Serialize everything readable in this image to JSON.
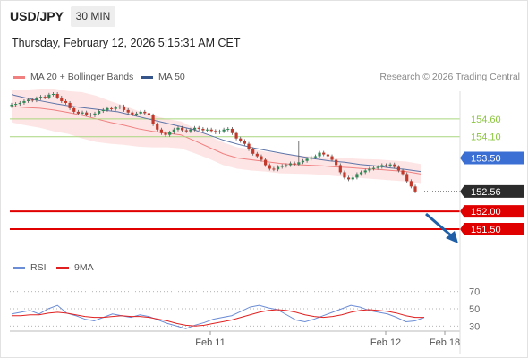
{
  "header": {
    "symbol": "USD/JPY",
    "timeframe": "30 MIN",
    "datetime": "Thursday, February 12, 2026 5:15:31 AM CET"
  },
  "legend": {
    "items": [
      {
        "label": "MA 20 + Bollinger Bands",
        "color": "#f08080"
      },
      {
        "label": "MA 50",
        "color": "#34548a"
      }
    ],
    "credit": "Research © 2026 Trading Central"
  },
  "chart_data": [
    {
      "type": "candlestick",
      "title": "",
      "y_range": [
        151.35,
        155.35
      ],
      "x_tick_labels": [
        "Feb 11",
        "Feb 12",
        "Feb 18"
      ],
      "close_series": [
        155.0,
        155.02,
        155.05,
        155.1,
        155.14,
        155.12,
        155.18,
        155.22,
        155.2,
        155.28,
        155.3,
        155.2,
        155.1,
        155.05,
        154.9,
        154.8,
        154.75,
        154.78,
        154.72,
        154.7,
        154.75,
        154.82,
        154.85,
        154.9,
        154.88,
        154.92,
        154.95,
        154.85,
        154.78,
        154.72,
        154.75,
        154.8,
        154.76,
        154.7,
        154.45,
        154.3,
        154.2,
        154.15,
        154.22,
        154.3,
        154.35,
        154.28,
        154.25,
        154.3,
        154.35,
        154.32,
        154.28,
        154.3,
        154.26,
        154.22,
        154.25,
        154.3,
        154.32,
        154.2,
        154.05,
        153.98,
        153.9,
        153.75,
        153.62,
        153.55,
        153.45,
        153.3,
        153.2,
        153.18,
        153.25,
        153.28,
        153.3,
        153.35,
        153.32,
        153.38,
        153.42,
        153.48,
        153.52,
        153.55,
        153.65,
        153.6,
        153.55,
        153.45,
        153.3,
        153.1,
        152.95,
        152.9,
        152.95,
        153.05,
        153.1,
        153.15,
        153.2,
        153.22,
        153.25,
        153.3,
        153.28,
        153.32,
        153.25,
        153.15,
        153.05,
        152.85,
        152.7,
        152.56
      ],
      "series": [
        {
          "name": "MA 20",
          "values": [
            154.95,
            154.92,
            154.9,
            154.85,
            154.78,
            154.7,
            154.6,
            154.5,
            154.42,
            154.32,
            154.25,
            154.2,
            154.15,
            153.98,
            153.8,
            153.62,
            153.5,
            153.45,
            153.4,
            153.35,
            153.32,
            153.3,
            153.28,
            153.25,
            153.23,
            153.2,
            153.18,
            153.15,
            153.12,
            153.05
          ]
        },
        {
          "name": "MA 50",
          "values": [
            155.28,
            155.18,
            155.1,
            155.02,
            154.95,
            154.9,
            154.85,
            154.8,
            154.7,
            154.6,
            154.5,
            154.4,
            154.3,
            154.15,
            154.0,
            153.88,
            153.78,
            153.7,
            153.62,
            153.55,
            153.48,
            153.42,
            153.38,
            153.32,
            153.28,
            153.22,
            153.18,
            153.12
          ]
        }
      ],
      "levels": [
        {
          "value": 154.6,
          "label": "154.60",
          "style": "resistance"
        },
        {
          "value": 154.1,
          "label": "154.10",
          "style": "resistance"
        },
        {
          "value": 153.5,
          "label": "153.50",
          "style": "pivot"
        },
        {
          "value": 152.56,
          "label": "152.56",
          "style": "last-price"
        },
        {
          "value": 152.0,
          "label": "152.00",
          "style": "target"
        },
        {
          "value": 151.5,
          "label": "151.50",
          "style": "target"
        }
      ]
    },
    {
      "type": "line",
      "title": "",
      "y_range": [
        22,
        78
      ],
      "y_tick_labels": [
        "70",
        "50",
        "30"
      ],
      "series": [
        {
          "name": "RSI",
          "color": "#6b8cd6",
          "values": [
            44,
            46,
            48,
            44,
            50,
            54,
            45,
            42,
            38,
            36,
            40,
            44,
            42,
            40,
            43,
            41,
            37,
            33,
            30,
            27,
            31,
            34,
            38,
            40,
            42,
            47,
            52,
            54,
            51,
            49,
            43,
            37,
            35,
            38,
            42,
            46,
            50,
            54,
            52,
            48,
            46,
            44,
            40,
            35,
            36,
            40
          ]
        },
        {
          "name": "9MA",
          "color": "#e02020",
          "values": [
            42,
            42,
            43,
            43,
            45,
            46,
            45,
            43,
            41,
            40,
            40,
            41,
            42,
            41,
            41,
            40,
            38,
            36,
            33,
            31,
            30,
            31,
            33,
            35,
            37,
            40,
            43,
            46,
            48,
            49,
            48,
            46,
            43,
            41,
            40,
            41,
            43,
            46,
            48,
            49,
            48,
            47,
            45,
            42,
            40,
            40
          ]
        }
      ]
    }
  ]
}
